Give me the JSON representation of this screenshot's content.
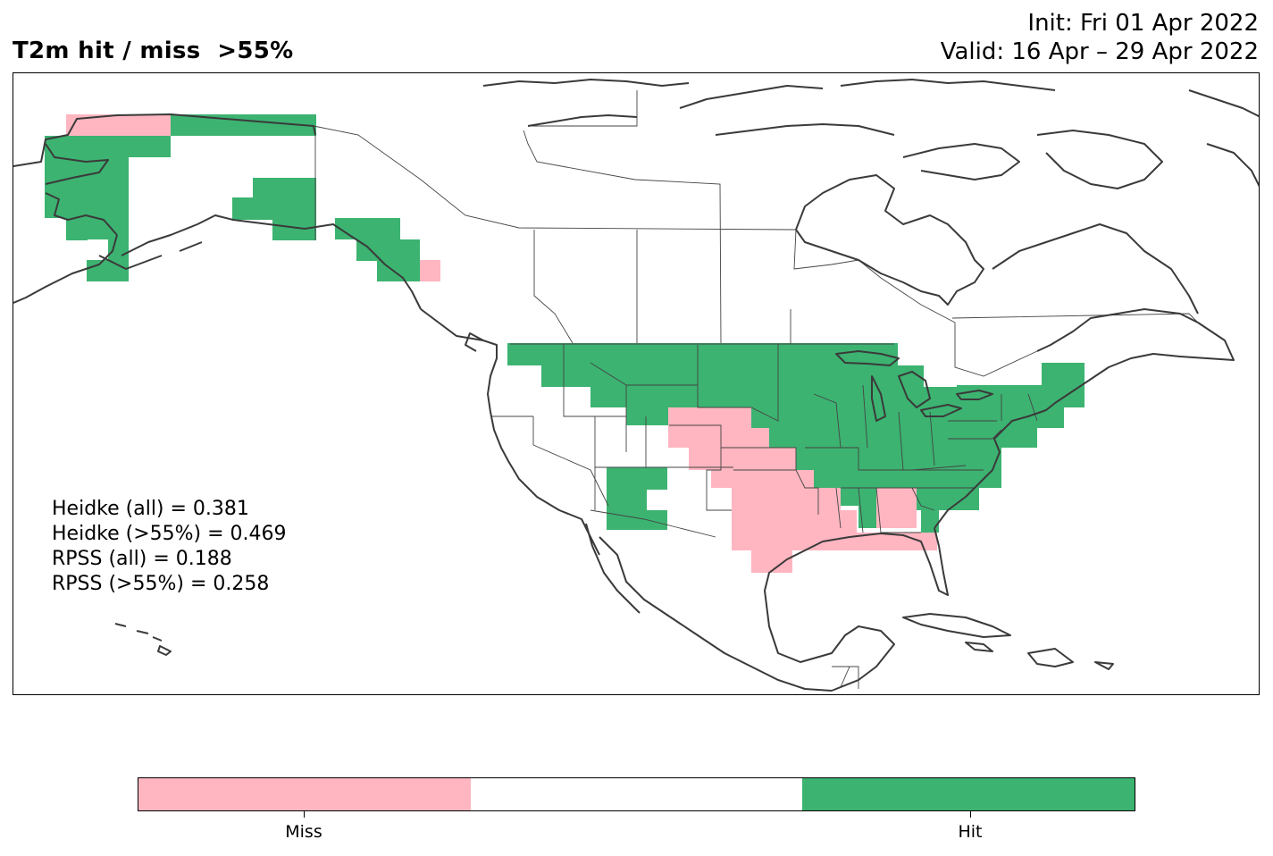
{
  "header": {
    "title": "T2m hit / miss  >55%",
    "init_line": "Init: Fri 01 Apr 2022",
    "valid_line": "Valid: 16 Apr – 29 Apr 2022"
  },
  "scores": {
    "heidke_all": "Heidke (all) = 0.381",
    "heidke_55": "Heidke (>55%) = 0.469",
    "rpss_all": "RPSS (all) = 0.188",
    "rpss_55": "RPSS (>55%) = 0.258"
  },
  "legend": {
    "categories": [
      "Miss",
      "",
      "Hit"
    ],
    "colors": {
      "miss": "#FFB6C1",
      "neutral": "#FFFFFF",
      "hit": "#3CB371"
    },
    "miss_label": "Miss",
    "hit_label": "Hit"
  },
  "map": {
    "region": "North America",
    "coastline_color": "#3a3a3a",
    "border_color": "#444444"
  }
}
